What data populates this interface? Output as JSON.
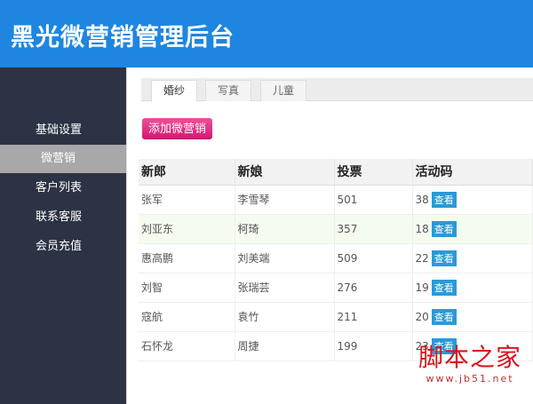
{
  "header": {
    "title": "黑光微营销管理后台"
  },
  "sidebar": {
    "items": [
      {
        "label": "基础设置"
      },
      {
        "label": "微营销",
        "active": true
      },
      {
        "label": "客户列表"
      },
      {
        "label": "联系客服"
      },
      {
        "label": "会员充值"
      }
    ]
  },
  "tabs": [
    {
      "label": "婚纱",
      "active": true
    },
    {
      "label": "写真"
    },
    {
      "label": "儿童"
    }
  ],
  "add_button": "添加微营销",
  "table": {
    "columns": [
      "新郎",
      "新娘",
      "投票",
      "活动码"
    ],
    "view_label": "查看",
    "rows": [
      [
        "张军",
        "李雪琴",
        "501",
        "38"
      ],
      [
        "刘亚东",
        "柯琦",
        "357",
        "18"
      ],
      [
        "惠高鹏",
        "刘美端",
        "509",
        "22"
      ],
      [
        "刘智",
        "张瑞芸",
        "276",
        "19"
      ],
      [
        "寇航",
        "袁竹",
        "211",
        "20"
      ],
      [
        "石怀龙",
        "周捷",
        "199",
        "23"
      ]
    ]
  },
  "watermark": {
    "title": "脚本之家",
    "url": "www.jb51.net"
  },
  "colors": {
    "header": "#1e86e0",
    "sidebar": "#2c3344",
    "add_button": "#e0307f",
    "view_button": "#2a9ad8"
  }
}
